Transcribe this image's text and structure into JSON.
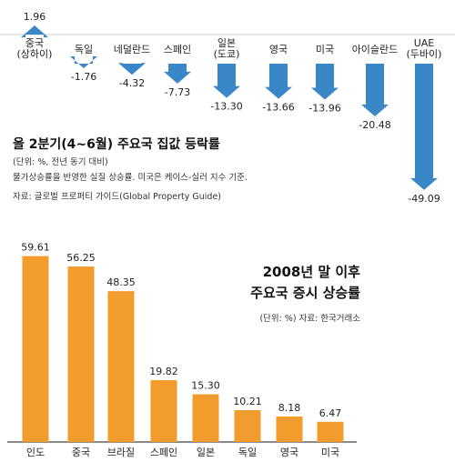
{
  "colors": {
    "accent": "#3a87c8",
    "bar_orange": "#f39c2e",
    "text": "#222222"
  },
  "chart_data": [
    {
      "type": "bar",
      "title": "올 2분기(4~6월) 주요국 집값 등락률",
      "subtitle": "(단위: %, 전년 동기 대비)",
      "notes": [
        "물가상승률을 반영한 실질 상승률. 미국은 케이스-실러 지수 기준.",
        "자료: 글로벌 프로퍼티 가이드(Global Property Guide)"
      ],
      "categories": [
        [
          "중국",
          "(상하이)"
        ],
        [
          "독일"
        ],
        [
          "네덜란드"
        ],
        [
          "스페인"
        ],
        [
          "일본",
          "(도쿄)"
        ],
        [
          "영국"
        ],
        [
          "미국"
        ],
        [
          "아이슬란드"
        ],
        [
          "UAE",
          "(두바이)"
        ]
      ],
      "values": [
        1.96,
        -1.76,
        -4.32,
        -7.73,
        -13.3,
        -13.66,
        -13.96,
        -20.48,
        -49.09
      ],
      "value_labels": [
        "1.96",
        "-1.76",
        "-4.32",
        "-7.73",
        "-13.30",
        "-13.66",
        "-13.96",
        "-20.48",
        "-49.09"
      ],
      "bar_style": "arrow",
      "color": "#3a87c8"
    },
    {
      "type": "bar",
      "title": [
        "2008년 말 이후",
        "주요국 증시 상승률"
      ],
      "subtitle": "(단위: %) 자료: 한국거래소",
      "categories": [
        "인도",
        "중국",
        "브라질",
        "스페인",
        "일본",
        "독일",
        "영국",
        "미국"
      ],
      "values": [
        59.61,
        56.25,
        48.35,
        19.82,
        15.3,
        10.21,
        8.18,
        6.47
      ],
      "value_labels": [
        "59.61",
        "56.25",
        "48.35",
        "19.82",
        "15.30",
        "10.21",
        "8.18",
        "6.47"
      ],
      "color": "#f39c2e"
    }
  ]
}
